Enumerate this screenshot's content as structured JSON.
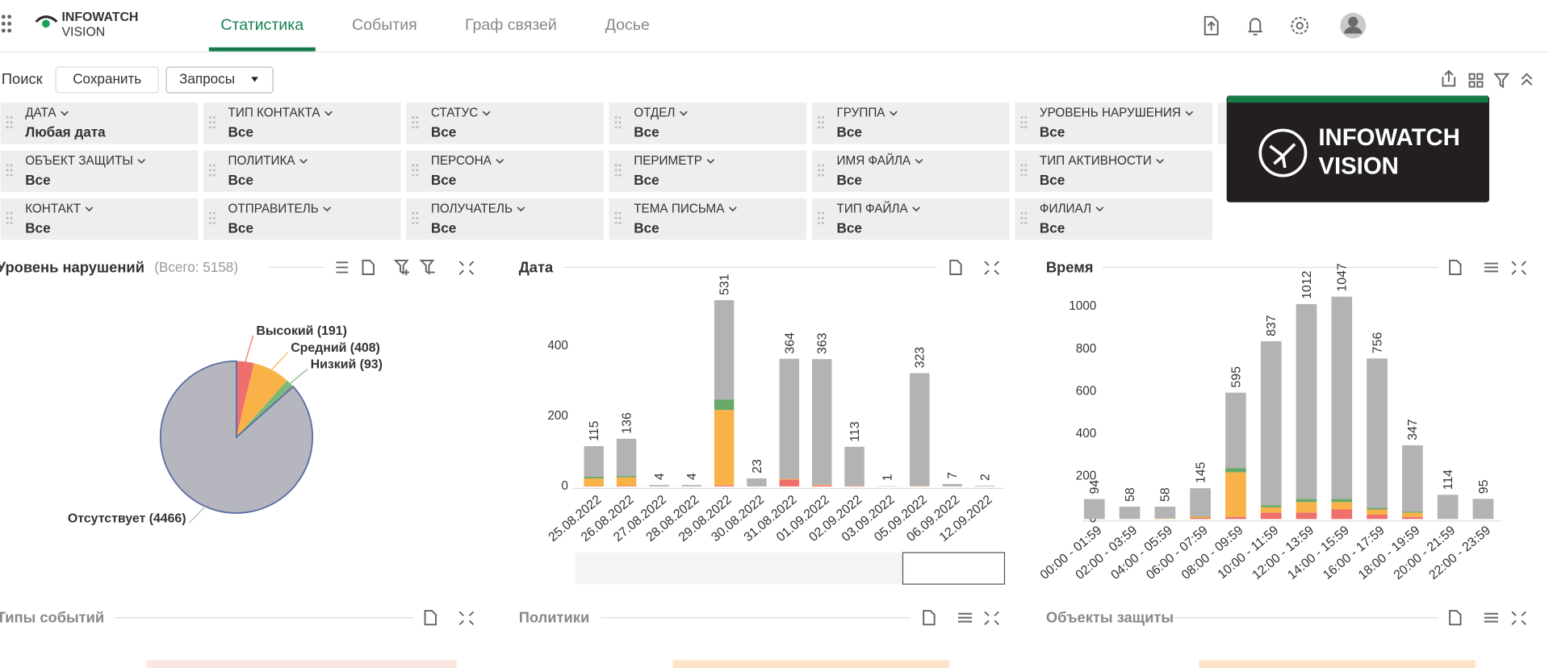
{
  "header": {
    "logo": [
      "INFOWATCH",
      "VISION"
    ],
    "tabs": [
      "Статистика",
      "События",
      "Граф связей",
      "Досье"
    ],
    "active_tab": 0
  },
  "toolbar": {
    "search": "Поиск",
    "save": "Сохранить",
    "queries": "Запросы"
  },
  "filters": [
    [
      {
        "label": "ДАТА",
        "value": "Любая дата"
      },
      {
        "label": "ТИП КОНТАКТА",
        "value": "Все"
      },
      {
        "label": "СТАТУС",
        "value": "Все"
      },
      {
        "label": "ОТДЕЛ",
        "value": "Все"
      },
      {
        "label": "ГРУППА",
        "value": "Все"
      },
      {
        "label": "УРОВЕНЬ НАРУШЕНИЯ",
        "value": "Все"
      }
    ],
    [
      {
        "label": "ОБЪЕКТ ЗАЩИТЫ",
        "value": "Все"
      },
      {
        "label": "ПОЛИТИКА",
        "value": "Все"
      },
      {
        "label": "ПЕРСОНА",
        "value": "Все"
      },
      {
        "label": "ПЕРИМЕТР",
        "value": "Все"
      },
      {
        "label": "ИМЯ ФАЙЛА",
        "value": "Все"
      },
      {
        "label": "ТИП АКТИВНОСТИ",
        "value": "Все"
      }
    ],
    [
      {
        "label": "КОНТАКТ",
        "value": "Все"
      },
      {
        "label": "ОТПРАВИТЕЛЬ",
        "value": "Все"
      },
      {
        "label": "ПОЛУЧАТЕЛЬ",
        "value": "Все"
      },
      {
        "label": "ТЕМА ПИСЬМА",
        "value": "Все"
      },
      {
        "label": "ТИП ФАЙЛА",
        "value": "Все"
      },
      {
        "label": "ФИЛИАЛ",
        "value": "Все"
      }
    ]
  ],
  "watermark": [
    "INFOWATCH",
    "VISION"
  ],
  "chart_data": [
    {
      "type": "pie",
      "title": "Уровень нарушений",
      "subtitle": "(Всего: 5158)",
      "labels": [
        "Высокий (191)",
        "Средний (408)",
        "Низкий (93)",
        "Отсутствует (4466)"
      ],
      "values": [
        191,
        408,
        93,
        4466
      ],
      "colors": [
        "#ef6f6c",
        "#f9b248",
        "#7cb87a",
        "#b6b6be"
      ]
    },
    {
      "type": "bar",
      "title": "Дата",
      "stacked": true,
      "grid": false,
      "categories": [
        "25.08.2022",
        "26.08.2022",
        "27.08.2022",
        "28.08.2022",
        "29.08.2022",
        "30.08.2022",
        "31.08.2022",
        "01.09.2022",
        "02.09.2022",
        "03.09.2022",
        "05.09.2022",
        "06.09.2022",
        "12.09.2022"
      ],
      "series": [
        {
          "color": "#ef6f6c",
          "values": [
            1,
            2,
            0,
            0,
            3,
            0,
            20,
            3,
            1,
            0,
            0,
            0,
            0
          ]
        },
        {
          "color": "#f9b248",
          "values": [
            22,
            24,
            0,
            0,
            215,
            0,
            2,
            2,
            1,
            0,
            1,
            0,
            0
          ]
        },
        {
          "color": "#6aa86a",
          "values": [
            5,
            4,
            0,
            0,
            30,
            0,
            0,
            0,
            0,
            0,
            0,
            0,
            0
          ]
        },
        {
          "color": "#b3b3b3",
          "values": [
            87,
            106,
            4,
            4,
            283,
            23,
            342,
            358,
            111,
            1,
            322,
            7,
            2
          ]
        }
      ],
      "totals": [
        115,
        136,
        4,
        4,
        531,
        23,
        364,
        363,
        113,
        1,
        323,
        7,
        2
      ],
      "ylim": [
        0,
        540
      ],
      "yticks": [
        0,
        200,
        400
      ]
    },
    {
      "type": "bar",
      "title": "Время",
      "stacked": true,
      "grid": false,
      "categories": [
        "00:00 - 01:59",
        "02:00 - 03:59",
        "04:00 - 05:59",
        "06:00 - 07:59",
        "08:00 - 09:59",
        "10:00 - 11:59",
        "12:00 - 13:59",
        "14:00 - 15:59",
        "16:00 - 17:59",
        "18:00 - 19:59",
        "20:00 - 21:59",
        "22:00 - 23:59"
      ],
      "series": [
        {
          "color": "#ef6f6c",
          "values": [
            0,
            0,
            0,
            5,
            10,
            30,
            30,
            45,
            20,
            10,
            0,
            0
          ]
        },
        {
          "color": "#f9b248",
          "values": [
            0,
            0,
            2,
            6,
            210,
            25,
            50,
            35,
            25,
            20,
            0,
            0
          ]
        },
        {
          "color": "#6aa86a",
          "values": [
            0,
            0,
            0,
            2,
            20,
            10,
            15,
            15,
            8,
            5,
            0,
            0
          ]
        },
        {
          "color": "#b3b3b3",
          "values": [
            94,
            58,
            56,
            132,
            355,
            772,
            917,
            952,
            703,
            312,
            114,
            95
          ]
        }
      ],
      "totals": [
        94,
        58,
        58,
        145,
        595,
        837,
        1012,
        1047,
        756,
        347,
        114,
        95
      ],
      "ylim": [
        0,
        1050
      ],
      "yticks": [
        0,
        200,
        400,
        600,
        800,
        1000
      ]
    }
  ],
  "widgets": [
    "Типы событий",
    "Политики",
    "Объекты защиты"
  ]
}
